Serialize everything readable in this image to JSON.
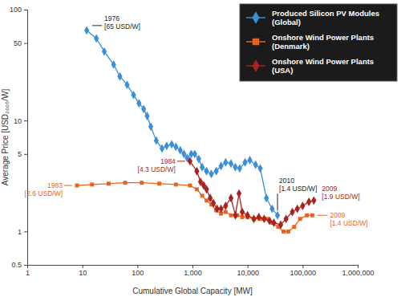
{
  "chart_data": {
    "type": "line",
    "log": true,
    "grid": false,
    "legend": "upper right",
    "x_label": "Cumulative Global Capacity [MW]",
    "y_label": "Average Price [USD₂₀₀₅/W]",
    "xlim": [
      1,
      1000000
    ],
    "ylim": [
      0.5,
      100
    ],
    "xticks": [
      1,
      10,
      100,
      {
        "value": 1000,
        "label": "1,000"
      },
      {
        "value": 10000,
        "label": "10,000"
      },
      {
        "value": 100000,
        "label": "100,000"
      },
      {
        "value": 1000000,
        "label": "1,000,000"
      }
    ],
    "yticks": [
      0.5,
      1,
      5,
      10,
      50,
      100
    ],
    "series": [
      {
        "name": "Produced Silicon PV Modules (Global)",
        "color": "#3b8fd8",
        "marker": "diamond",
        "x": [
          12,
          18,
          25,
          37,
          48,
          65,
          85,
          107,
          130,
          150,
          175,
          220,
          280,
          340,
          420,
          500,
          600,
          700,
          800,
          950,
          1100,
          1300,
          1500,
          1800,
          2200,
          2700,
          3300,
          4000,
          5000,
          6000,
          7200,
          9000,
          11000,
          14000,
          17000,
          22000,
          28000,
          35000
        ],
        "values": [
          65,
          55,
          42,
          32,
          25,
          21,
          17,
          14.3,
          12.7,
          11,
          8.8,
          6.6,
          5.6,
          5.9,
          6.1,
          5.8,
          5.4,
          5.0,
          4.6,
          5.0,
          5.0,
          4.5,
          3.8,
          3.5,
          3.3,
          3.5,
          3.9,
          4.2,
          4.1,
          3.8,
          3.7,
          4.2,
          4.4,
          4.0,
          3.7,
          2.0,
          1.6,
          1.4
        ]
      },
      {
        "name": "Onshore Wind Power Plants (Denmark)",
        "color": "#e8621d",
        "marker": "square",
        "x": [
          8,
          15,
          30,
          60,
          120,
          250,
          500,
          900,
          1200,
          1500,
          1800,
          2200,
          2700,
          3300,
          4000,
          5000,
          6500,
          8000,
          10000,
          13000,
          17000,
          22000,
          28000,
          36000,
          45000,
          55000,
          70000,
          90000,
          120000,
          150000
        ],
        "values": [
          2.6,
          2.65,
          2.7,
          2.75,
          2.75,
          2.7,
          2.65,
          2.6,
          2.4,
          2.1,
          1.9,
          1.75,
          1.55,
          1.45,
          1.5,
          1.4,
          1.4,
          1.35,
          1.35,
          1.3,
          1.3,
          1.3,
          1.2,
          1.1,
          1.0,
          1.0,
          1.1,
          1.3,
          1.4,
          1.4
        ]
      },
      {
        "name": "Onshore Wind Power Plants (USA)",
        "color": "#a6231f",
        "marker": "diamond",
        "x": [
          900,
          1200,
          1400,
          1600,
          1800,
          2100,
          2400,
          2800,
          3300,
          4000,
          5000,
          6000,
          7000,
          8000,
          10000,
          13000,
          16000,
          20000,
          25000,
          30000,
          40000,
          50000,
          65000,
          80000,
          100000,
          130000,
          160000
        ],
        "values": [
          4.3,
          3.5,
          2.8,
          2.6,
          2.4,
          2.0,
          1.8,
          1.6,
          1.6,
          1.7,
          2.0,
          1.4,
          2.2,
          1.5,
          1.4,
          1.3,
          1.35,
          1.3,
          1.25,
          1.2,
          1.15,
          1.3,
          1.5,
          1.6,
          1.7,
          1.85,
          1.9
        ]
      }
    ],
    "annotations": [
      {
        "lines": [
          "1976",
          "[65 USD/W]"
        ]
      },
      {
        "lines": [
          "1984",
          "[4.3 USD/W]"
        ]
      },
      {
        "lines": [
          "1983",
          "[2.6 USD/W]"
        ]
      },
      {
        "lines": [
          "2010",
          "[1.4 USD/W]"
        ]
      },
      {
        "lines": [
          "2009",
          "[1.9 USD/W]"
        ]
      },
      {
        "lines": [
          "2009",
          "[1.4 USD/W]"
        ]
      }
    ]
  }
}
